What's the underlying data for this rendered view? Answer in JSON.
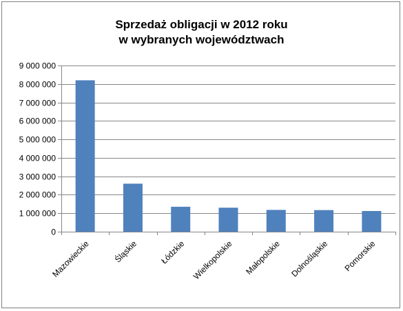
{
  "chart_data": {
    "type": "bar",
    "title_lines": [
      "Sprzedaż obligacji w 2012 roku",
      "w wybranych województwach"
    ],
    "categories": [
      "Mazowieckie",
      "Śląskie",
      "Łódzkie",
      "Wielkopolskie",
      "Małopolskie",
      "Dolnośląskie",
      "Pomorskie"
    ],
    "values": [
      8200000,
      2600000,
      1350000,
      1300000,
      1180000,
      1170000,
      1120000
    ],
    "ylim": [
      0,
      9000000
    ],
    "yticks": [
      0,
      1000000,
      2000000,
      3000000,
      4000000,
      5000000,
      6000000,
      7000000,
      8000000,
      9000000
    ],
    "ytick_labels": [
      "0",
      "1 000 000",
      "2 000 000",
      "3 000 000",
      "4 000 000",
      "5 000 000",
      "6 000 000",
      "7 000 000",
      "8 000 000",
      "9 000 000"
    ],
    "bar_color": "#4f81bd",
    "grid": true,
    "grid_color": "#868686",
    "legend": "none"
  }
}
